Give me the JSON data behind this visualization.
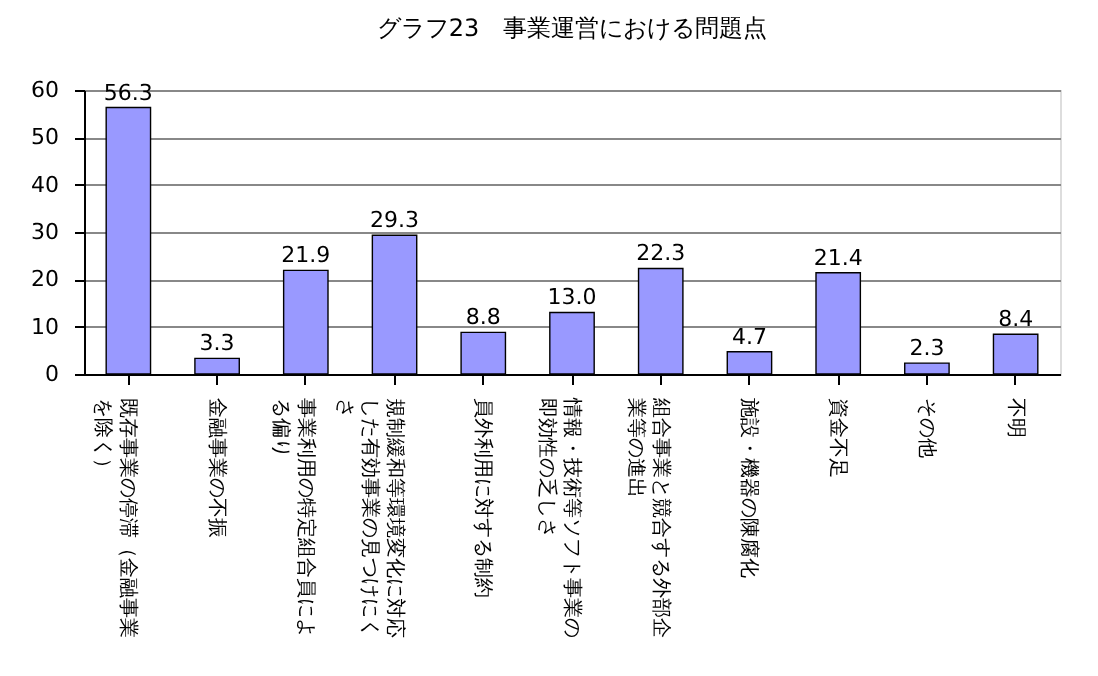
{
  "chart_data": {
    "type": "bar",
    "title": "グラフ23　事業運営における問題点",
    "categories": [
      "既存事業の停滞（金融事業を除く）",
      "金融事業の不振",
      "事業利用の特定組合員による偏り",
      "規制緩和等環境変化に対応した有効事業の見つけにくさ",
      "員外利用に対する制約",
      "情報・技術等ソフト事業の即効性の乏しさ",
      "組合事業と競合する外部企業等の進出",
      "施設・機器の陳腐化",
      "資金不足",
      "その他",
      "不明"
    ],
    "values": [
      56.3,
      3.3,
      21.9,
      29.3,
      8.8,
      13.0,
      22.3,
      4.7,
      21.4,
      2.3,
      8.4
    ],
    "color": "#9999ff",
    "value_labels": [
      "56.3",
      "3.3",
      "21.9",
      "29.3",
      "8.8",
      "13.0",
      "22.3",
      "4.7",
      "21.4",
      "2.3",
      "8.4"
    ],
    "ylim": [
      0,
      60
    ],
    "yticks": [
      0,
      10,
      20,
      30,
      40,
      50,
      60
    ],
    "grid": "y"
  }
}
